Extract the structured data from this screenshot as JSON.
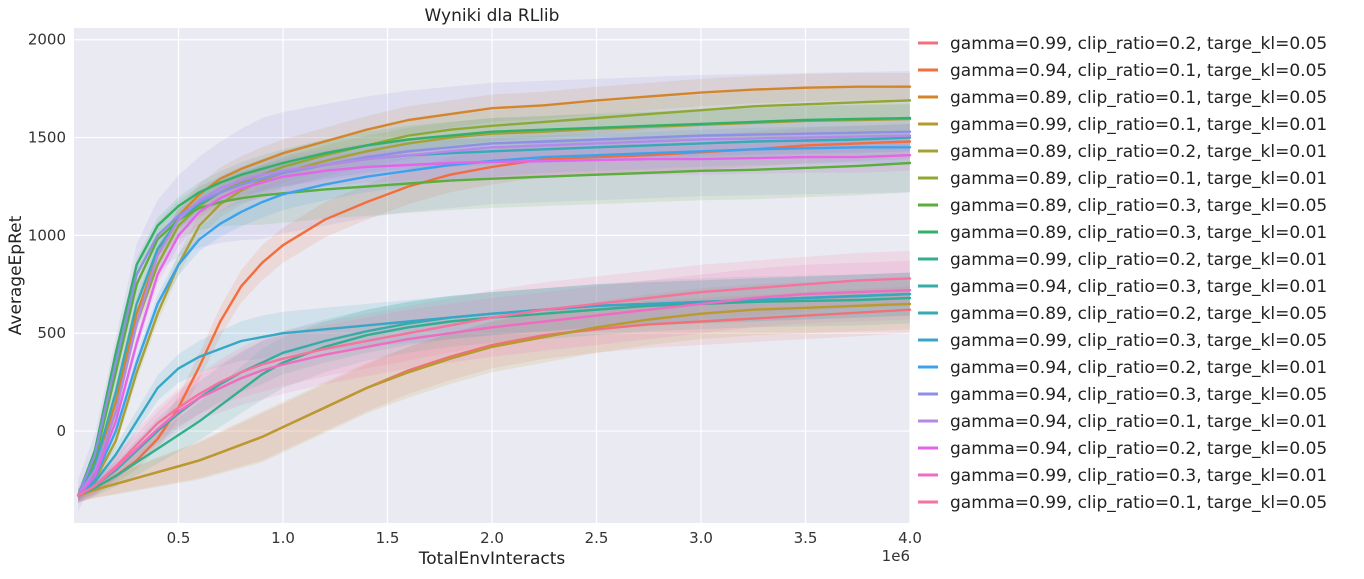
{
  "chart_data": {
    "type": "line",
    "title": "Wyniki dla RLlib",
    "xlabel": "TotalEnvInteracts",
    "ylabel": "AverageEpRet",
    "x_offset_label": "1e6",
    "xlim": [
      0.0,
      4.0
    ],
    "ylim": [
      -470,
      2060
    ],
    "x_ticks": [
      0.5,
      1.0,
      1.5,
      2.0,
      2.5,
      3.0,
      3.5,
      4.0
    ],
    "x_tick_labels": [
      "0.5",
      "1.0",
      "1.5",
      "2.0",
      "2.5",
      "3.0",
      "3.5",
      "4.0"
    ],
    "y_ticks": [
      0,
      500,
      1000,
      1500,
      2000
    ],
    "y_tick_labels": [
      "0",
      "500",
      "1000",
      "1500",
      "2000"
    ],
    "grid": true,
    "legend_position": "right, outside plot",
    "x": [
      0.02,
      0.1,
      0.2,
      0.3,
      0.4,
      0.5,
      0.6,
      0.7,
      0.8,
      0.9,
      1.0,
      1.2,
      1.4,
      1.6,
      1.8,
      2.0,
      2.25,
      2.5,
      2.75,
      3.0,
      3.25,
      3.5,
      3.75,
      4.0
    ],
    "series": [
      {
        "name": "gamma=0.99, clip_ratio=0.2, targe_kl=0.05",
        "color": "#f0717a",
        "band": 120,
        "values": [
          -330,
          -300,
          -270,
          -240,
          -210,
          -180,
          -150,
          -110,
          -70,
          -30,
          20,
          120,
          220,
          310,
          380,
          440,
          490,
          520,
          545,
          560,
          575,
          590,
          605,
          620
        ]
      },
      {
        "name": "gamma=0.94, clip_ratio=0.1, targe_kl=0.05",
        "color": "#f36d3e",
        "band": 90,
        "values": [
          -330,
          -290,
          -230,
          -150,
          -40,
          120,
          330,
          560,
          740,
          860,
          950,
          1080,
          1170,
          1250,
          1310,
          1350,
          1390,
          1400,
          1410,
          1425,
          1440,
          1460,
          1470,
          1480
        ]
      },
      {
        "name": "gamma=0.89, clip_ratio=0.1, targe_kl=0.05",
        "color": "#d3852c",
        "band": 70,
        "values": [
          -330,
          -200,
          150,
          600,
          900,
          1100,
          1210,
          1290,
          1340,
          1380,
          1420,
          1480,
          1540,
          1590,
          1620,
          1650,
          1665,
          1690,
          1710,
          1730,
          1745,
          1755,
          1760,
          1760
        ]
      },
      {
        "name": "gamma=0.99, clip_ratio=0.1, targe_kl=0.01",
        "color": "#b89a2d",
        "band": 130,
        "values": [
          -330,
          -300,
          -270,
          -240,
          -210,
          -180,
          -150,
          -110,
          -70,
          -30,
          20,
          120,
          220,
          300,
          370,
          430,
          480,
          530,
          570,
          600,
          620,
          630,
          640,
          650
        ]
      },
      {
        "name": "gamma=0.89, clip_ratio=0.2, targe_kl=0.01",
        "color": "#a7a135",
        "band": 80,
        "values": [
          -330,
          -250,
          -50,
          300,
          600,
          850,
          1050,
          1160,
          1230,
          1280,
          1320,
          1380,
          1430,
          1470,
          1500,
          1520,
          1530,
          1545,
          1555,
          1565,
          1575,
          1585,
          1590,
          1595
        ]
      },
      {
        "name": "gamma=0.89, clip_ratio=0.1, targe_kl=0.01",
        "color": "#8fa834",
        "band": 80,
        "values": [
          -330,
          -220,
          100,
          550,
          850,
          1050,
          1150,
          1220,
          1270,
          1310,
          1350,
          1410,
          1460,
          1510,
          1540,
          1560,
          1580,
          1600,
          1620,
          1640,
          1660,
          1670,
          1680,
          1690
        ]
      },
      {
        "name": "gamma=0.89, clip_ratio=0.3, targe_kl=0.05",
        "color": "#5aae3c",
        "band": 150,
        "values": [
          -330,
          -150,
          300,
          750,
          980,
          1080,
          1140,
          1170,
          1190,
          1205,
          1215,
          1235,
          1250,
          1265,
          1280,
          1290,
          1300,
          1310,
          1320,
          1330,
          1335,
          1345,
          1355,
          1370
        ]
      },
      {
        "name": "gamma=0.89, clip_ratio=0.3, targe_kl=0.01",
        "color": "#33b068",
        "band": 70,
        "values": [
          -330,
          -100,
          400,
          850,
          1050,
          1150,
          1220,
          1270,
          1310,
          1340,
          1370,
          1420,
          1460,
          1490,
          1510,
          1530,
          1540,
          1550,
          1560,
          1570,
          1580,
          1590,
          1595,
          1600
        ]
      },
      {
        "name": "gamma=0.99, clip_ratio=0.2, targe_kl=0.01",
        "color": "#33ae8f",
        "band": 130,
        "values": [
          -330,
          -290,
          -230,
          -160,
          -90,
          -20,
          50,
          130,
          210,
          290,
          350,
          430,
          490,
          530,
          560,
          580,
          600,
          620,
          640,
          650,
          660,
          665,
          670,
          680
        ]
      },
      {
        "name": "gamma=0.94, clip_ratio=0.3, targe_kl=0.01",
        "color": "#35aca4",
        "band": 110,
        "values": [
          -330,
          -280,
          -200,
          -100,
          0,
          90,
          170,
          240,
          300,
          350,
          400,
          460,
          510,
          550,
          580,
          600,
          620,
          640,
          650,
          660,
          670,
          680,
          690,
          700
        ]
      },
      {
        "name": "gamma=0.89, clip_ratio=0.2, targe_kl=0.05",
        "color": "#36aab5",
        "band": 70,
        "values": [
          -330,
          -180,
          200,
          650,
          930,
          1080,
          1160,
          1220,
          1260,
          1290,
          1320,
          1360,
          1390,
          1410,
          1420,
          1430,
          1440,
          1450,
          1460,
          1470,
          1480,
          1485,
          1490,
          1500
        ]
      },
      {
        "name": "gamma=0.99, clip_ratio=0.3, targe_kl=0.05",
        "color": "#38a7c5",
        "band": 110,
        "values": [
          -330,
          -260,
          -120,
          50,
          220,
          320,
          380,
          420,
          460,
          480,
          500,
          520,
          540,
          560,
          580,
          600,
          620,
          640,
          650,
          660,
          670,
          680,
          690,
          700
        ]
      },
      {
        "name": "gamma=0.94, clip_ratio=0.2, targe_kl=0.01",
        "color": "#3ba3ec",
        "band": 80,
        "values": [
          -330,
          -240,
          0,
          350,
          650,
          850,
          980,
          1060,
          1120,
          1170,
          1210,
          1260,
          1300,
          1330,
          1360,
          1380,
          1400,
          1410,
          1420,
          1430,
          1440,
          1445,
          1450,
          1450
        ]
      },
      {
        "name": "gamma=0.94, clip_ratio=0.3, targe_kl=0.05",
        "color": "#8e8fe5",
        "band": 310,
        "values": [
          -330,
          -120,
          350,
          800,
          1000,
          1100,
          1170,
          1220,
          1260,
          1290,
          1320,
          1360,
          1400,
          1430,
          1450,
          1470,
          1480,
          1490,
          1500,
          1510,
          1515,
          1520,
          1525,
          1530
        ]
      },
      {
        "name": "gamma=0.94, clip_ratio=0.1, targe_kl=0.01",
        "color": "#b38ae8",
        "band": 80,
        "values": [
          -330,
          -200,
          100,
          550,
          900,
          1080,
          1180,
          1240,
          1280,
          1310,
          1330,
          1360,
          1390,
          1410,
          1430,
          1450,
          1460,
          1470,
          1480,
          1490,
          1495,
          1500,
          1505,
          1510
        ]
      },
      {
        "name": "gamma=0.94, clip_ratio=0.2, targe_kl=0.05",
        "color": "#e464ea",
        "band": 80,
        "values": [
          -330,
          -230,
          50,
          450,
          800,
          1000,
          1120,
          1190,
          1240,
          1270,
          1300,
          1330,
          1350,
          1360,
          1370,
          1375,
          1380,
          1385,
          1390,
          1390,
          1395,
          1400,
          1400,
          1410
        ]
      },
      {
        "name": "gamma=0.99, clip_ratio=0.3, targe_kl=0.01",
        "color": "#f06bc2",
        "band": 150,
        "values": [
          -330,
          -280,
          -190,
          -90,
          10,
          100,
          170,
          220,
          270,
          310,
          340,
          390,
          430,
          470,
          500,
          530,
          560,
          590,
          620,
          650,
          680,
          700,
          710,
          720
        ]
      },
      {
        "name": "gamma=0.99, clip_ratio=0.1, targe_kl=0.05",
        "color": "#f5739d",
        "band": 140,
        "values": [
          -330,
          -280,
          -180,
          -70,
          40,
          120,
          190,
          250,
          300,
          340,
          370,
          420,
          460,
          500,
          540,
          580,
          620,
          650,
          680,
          710,
          730,
          750,
          770,
          780
        ]
      }
    ]
  }
}
